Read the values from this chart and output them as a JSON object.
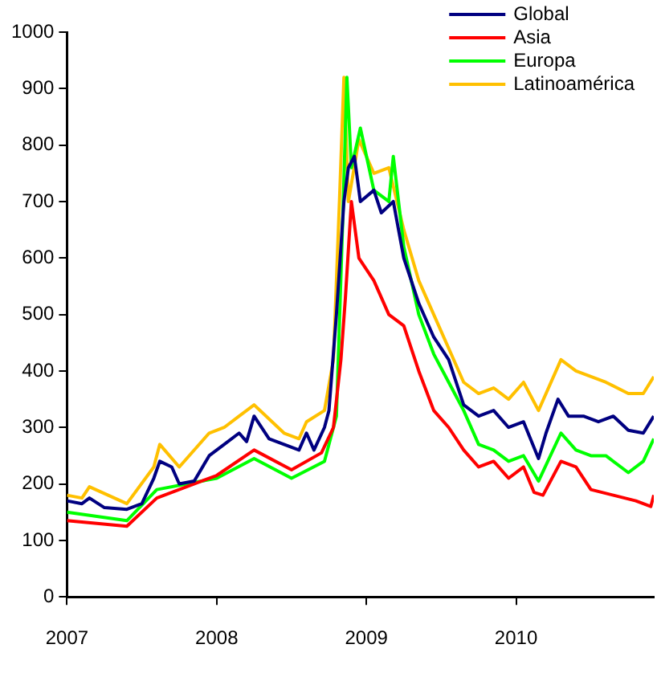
{
  "chart_data": {
    "type": "line",
    "legend": "top right",
    "grid": false,
    "marker": "none",
    "line_style": "solid",
    "xlim": [
      2007,
      2010.92
    ],
    "xticks": [
      2007,
      2008,
      2009,
      2010
    ],
    "ylim": [
      0,
      1000
    ],
    "yticks": [
      0,
      100,
      200,
      300,
      400,
      500,
      600,
      700,
      800,
      900,
      1000
    ],
    "series": [
      {
        "name": "Global",
        "color": "#000080",
        "x": [
          2007,
          2007.1,
          2007.15,
          2007.25,
          2007.4,
          2007.5,
          2007.58,
          2007.62,
          2007.7,
          2007.75,
          2007.85,
          2007.95,
          2008.05,
          2008.15,
          2008.2,
          2008.25,
          2008.35,
          2008.45,
          2008.55,
          2008.6,
          2008.65,
          2008.72,
          2008.75,
          2008.8,
          2008.85,
          2008.88,
          2008.92,
          2008.96,
          2009.05,
          2009.1,
          2009.18,
          2009.25,
          2009.35,
          2009.45,
          2009.55,
          2009.65,
          2009.75,
          2009.85,
          2009.95,
          2010.05,
          2010.15,
          2010.2,
          2010.28,
          2010.35,
          2010.45,
          2010.55,
          2010.65,
          2010.75,
          2010.85,
          2010.92
        ],
        "values": [
          170,
          165,
          175,
          158,
          155,
          165,
          210,
          240,
          230,
          200,
          205,
          250,
          270,
          290,
          275,
          320,
          280,
          270,
          260,
          290,
          260,
          300,
          330,
          500,
          700,
          760,
          780,
          700,
          720,
          680,
          700,
          600,
          520,
          460,
          420,
          340,
          320,
          330,
          300,
          310,
          245,
          290,
          350,
          320,
          320,
          310,
          320,
          295,
          290,
          320
        ]
      },
      {
        "name": "Asia",
        "color": "#ff0000",
        "x": [
          2007,
          2007.4,
          2007.6,
          2008,
          2008.25,
          2008.5,
          2008.7,
          2008.78,
          2008.83,
          2008.86,
          2008.9,
          2008.95,
          2009.05,
          2009.15,
          2009.25,
          2009.35,
          2009.45,
          2009.55,
          2009.65,
          2009.75,
          2009.85,
          2009.95,
          2010.05,
          2010.12,
          2010.18,
          2010.3,
          2010.4,
          2010.5,
          2010.65,
          2010.8,
          2010.9,
          2010.92
        ],
        "values": [
          135,
          125,
          175,
          215,
          260,
          225,
          255,
          300,
          420,
          530,
          700,
          600,
          560,
          500,
          480,
          400,
          330,
          300,
          260,
          230,
          240,
          210,
          230,
          185,
          180,
          240,
          230,
          190,
          180,
          170,
          160,
          180
        ]
      },
      {
        "name": "Europa",
        "color": "#00ff00",
        "x": [
          2007,
          2007.4,
          2007.6,
          2008,
          2008.25,
          2008.5,
          2008.72,
          2008.8,
          2008.84,
          2008.87,
          2008.9,
          2008.96,
          2009.05,
          2009.15,
          2009.18,
          2009.25,
          2009.35,
          2009.45,
          2009.55,
          2009.65,
          2009.75,
          2009.85,
          2009.95,
          2010.05,
          2010.15,
          2010.3,
          2010.4,
          2010.5,
          2010.6,
          2010.75,
          2010.85,
          2010.92
        ],
        "values": [
          150,
          135,
          190,
          210,
          245,
          210,
          240,
          320,
          650,
          920,
          760,
          830,
          720,
          700,
          780,
          620,
          500,
          430,
          380,
          330,
          270,
          260,
          240,
          250,
          205,
          290,
          260,
          250,
          250,
          220,
          240,
          280
        ]
      },
      {
        "name": "Latinoamérica",
        "color": "#ffc000",
        "x": [
          2007,
          2007.1,
          2007.15,
          2007.4,
          2007.58,
          2007.62,
          2007.75,
          2007.95,
          2008.05,
          2008.15,
          2008.25,
          2008.45,
          2008.55,
          2008.6,
          2008.72,
          2008.78,
          2008.82,
          2008.85,
          2008.88,
          2008.95,
          2009.05,
          2009.15,
          2009.25,
          2009.35,
          2009.45,
          2009.55,
          2009.65,
          2009.75,
          2009.85,
          2009.95,
          2010.05,
          2010.15,
          2010.3,
          2010.4,
          2010.5,
          2010.6,
          2010.75,
          2010.85,
          2010.92
        ],
        "values": [
          180,
          175,
          195,
          165,
          230,
          270,
          230,
          290,
          300,
          320,
          340,
          290,
          280,
          310,
          330,
          420,
          700,
          920,
          700,
          810,
          750,
          760,
          650,
          560,
          500,
          440,
          380,
          360,
          370,
          350,
          380,
          330,
          420,
          400,
          390,
          380,
          360,
          360,
          390
        ]
      }
    ]
  }
}
